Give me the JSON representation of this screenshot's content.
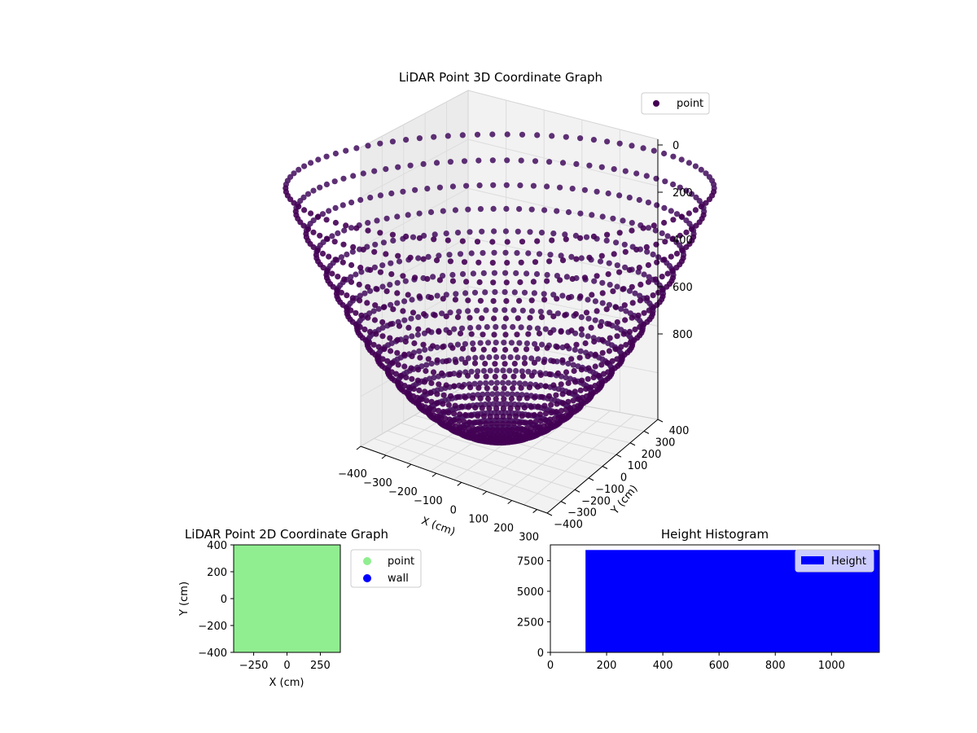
{
  "chart_data": [
    {
      "type": "scatter",
      "projection": "3d",
      "title": "LiDAR Point 3D Coordinate Graph",
      "xlabel": "X (cm)",
      "ylabel": "Y (cm)",
      "zlabel": "",
      "x_ticks": [
        "−400",
        "−300",
        "−200",
        "−100",
        "0",
        "100",
        "200",
        "300"
      ],
      "y_ticks": [
        "−400",
        "−300",
        "−200",
        "−100",
        "0",
        "100",
        "200",
        "300",
        "400"
      ],
      "z_ticks": [
        "0",
        "200",
        "400",
        "600",
        "800"
      ],
      "xlim": [
        -400,
        400
      ],
      "ylim": [
        -400,
        400
      ],
      "zlim": [
        -1000,
        0
      ],
      "legend": {
        "position": "top-right",
        "entries": [
          {
            "name": "point",
            "color": "#440154"
          }
        ]
      },
      "series": [
        {
          "name": "point",
          "color": "#440154",
          "shape": "bowl",
          "rings": 21,
          "points_per_ring": 90,
          "radius_max": 560,
          "depth_min": 120,
          "depth_max": 1150
        }
      ]
    },
    {
      "type": "scatter",
      "title": "LiDAR Point 2D Coordinate Graph",
      "xlabel": "X (cm)",
      "ylabel": "Y (cm)",
      "xlim": [
        -400,
        400
      ],
      "ylim": [
        -400,
        400
      ],
      "x_ticks": [
        "−250",
        "0",
        "250"
      ],
      "x_tick_values": [
        -250,
        0,
        250
      ],
      "y_ticks": [
        "400",
        "200",
        "0",
        "−200",
        "−400"
      ],
      "y_tick_values": [
        400,
        200,
        0,
        -200,
        -400
      ],
      "legend": {
        "position": "outside-right",
        "entries": [
          {
            "name": "point",
            "color": "#90ee90"
          },
          {
            "name": "wall",
            "color": "#0000ff"
          }
        ]
      },
      "series": [
        {
          "name": "point",
          "color": "#90ee90",
          "fill": "full-area"
        },
        {
          "name": "wall",
          "color": "#0000ff",
          "values": []
        }
      ]
    },
    {
      "type": "bar",
      "title": "Height Histogram",
      "xlabel": "",
      "ylabel": "",
      "xlim": [
        0,
        1170
      ],
      "ylim": [
        0,
        8800
      ],
      "x_ticks": [
        "0",
        "200",
        "400",
        "600",
        "800",
        "1000"
      ],
      "x_tick_values": [
        0,
        200,
        400,
        600,
        800,
        1000
      ],
      "y_ticks": [
        "0",
        "2500",
        "5000",
        "7500"
      ],
      "y_tick_values": [
        0,
        2500,
        5000,
        7500
      ],
      "legend": {
        "position": "top-right",
        "entries": [
          {
            "name": "Height",
            "color": "#0000ff"
          }
        ]
      },
      "series": [
        {
          "name": "Height",
          "color": "#0000ff",
          "bin_start": 125,
          "bin_end": 1170,
          "count": 8380
        }
      ]
    }
  ]
}
